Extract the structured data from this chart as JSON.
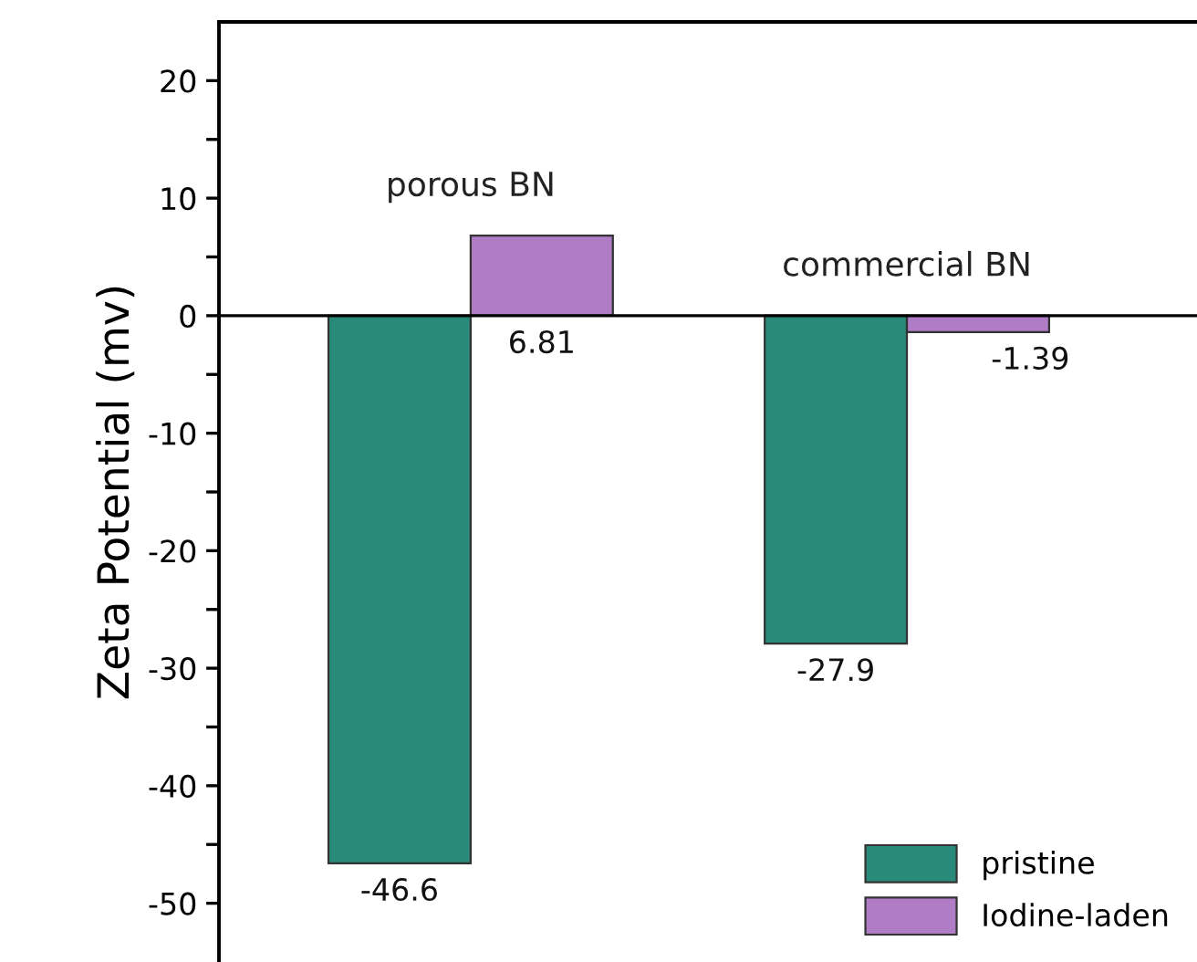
{
  "chart_data": {
    "type": "bar",
    "ylabel": "Zeta Potential (mv)",
    "categories": [
      "porous BN",
      "commercial BN"
    ],
    "series": [
      {
        "name": "pristine",
        "color": "#2a8a7a",
        "values": [
          -46.6,
          -27.9
        ]
      },
      {
        "name": "Iodine-laden",
        "color": "#b07cc6",
        "values": [
          6.81,
          -1.39
        ]
      }
    ],
    "ylim": [
      -55,
      25
    ],
    "yticks": [
      20,
      {
        "value": 15,
        "label": null
      },
      10,
      {
        "value": 5,
        "label": null
      },
      0,
      {
        "value": -5,
        "label": null
      },
      -10,
      {
        "value": -15,
        "label": null
      },
      -20,
      {
        "value": -25,
        "label": null
      },
      -30,
      {
        "value": -35,
        "label": null
      },
      -40,
      {
        "value": -45,
        "label": null
      },
      -50
    ],
    "ref_lines": [
      {
        "axis": "y",
        "value": 0,
        "color": "#000000",
        "line_style": "solid"
      }
    ],
    "data_labels": true,
    "legend": "bottom right"
  }
}
